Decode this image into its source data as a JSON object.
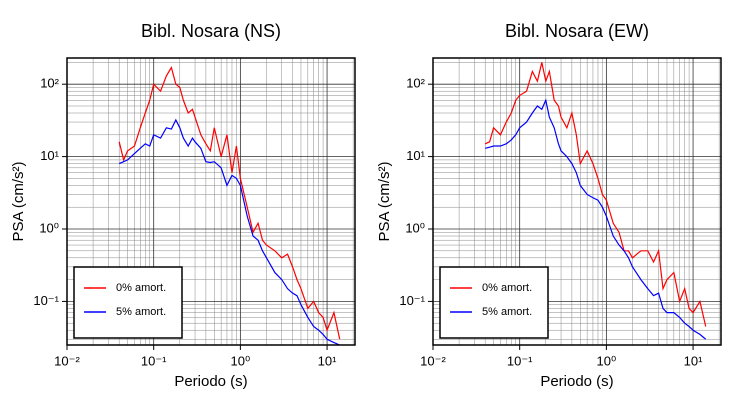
{
  "chart_data": [
    {
      "type": "line",
      "title": "Bibl. Nosara (NS)",
      "xlabel": "Periodo (s)",
      "ylabel": "PSA (cm/s²)",
      "log_x": true,
      "log_y": true,
      "grid": true,
      "legend": "lower left",
      "xlim": [
        0.01,
        21
      ],
      "ylim": [
        0.025,
        230
      ],
      "xticks": [
        {
          "value": 0.01,
          "label": "10⁻²"
        },
        {
          "value": 0.1,
          "label": "10⁻¹"
        },
        {
          "value": 1,
          "label": "10⁰"
        },
        {
          "value": 10,
          "label": "10¹"
        }
      ],
      "yticks": [
        {
          "value": 0.1,
          "label": "10⁻¹"
        },
        {
          "value": 1,
          "label": "10⁰"
        },
        {
          "value": 10,
          "label": "10¹"
        },
        {
          "value": 100,
          "label": "10²"
        }
      ],
      "x": [
        0.04,
        0.045,
        0.05,
        0.06,
        0.07,
        0.08,
        0.09,
        0.1,
        0.12,
        0.14,
        0.16,
        0.18,
        0.2,
        0.22,
        0.25,
        0.28,
        0.3,
        0.35,
        0.4,
        0.45,
        0.5,
        0.6,
        0.7,
        0.8,
        0.9,
        1.0,
        1.2,
        1.4,
        1.6,
        1.8,
        2,
        2.5,
        3,
        3.5,
        4,
        4.5,
        5,
        6,
        7,
        8,
        9,
        10,
        12,
        14
      ],
      "series": [
        {
          "name": "0% amort.",
          "color": "#ff0000",
          "values": [
            16,
            9,
            12,
            14,
            25,
            40,
            60,
            100,
            80,
            130,
            170,
            100,
            90,
            60,
            40,
            45,
            35,
            20,
            15,
            12,
            25,
            10,
            20,
            6,
            14,
            5,
            2,
            0.9,
            1.2,
            0.7,
            0.6,
            0.5,
            0.4,
            0.45,
            0.3,
            0.2,
            0.15,
            0.08,
            0.1,
            0.07,
            0.06,
            0.04,
            0.07,
            0.03
          ]
        },
        {
          "name": "5% amort.",
          "color": "#0000ff",
          "values": [
            8,
            8.5,
            9,
            11,
            13,
            15,
            14,
            20,
            18,
            25,
            24,
            32,
            25,
            18,
            14,
            18,
            16,
            13,
            8.5,
            8.3,
            8.5,
            7,
            4,
            5.5,
            5,
            4,
            1.5,
            0.8,
            0.7,
            0.5,
            0.4,
            0.25,
            0.2,
            0.15,
            0.13,
            0.12,
            0.09,
            0.06,
            0.045,
            0.04,
            0.035,
            0.03,
            0.027,
            0.025
          ]
        }
      ]
    },
    {
      "type": "line",
      "title": "Bibl. Nosara (EW)",
      "xlabel": "Periodo (s)",
      "ylabel": "PSA (cm/s²)",
      "log_x": true,
      "log_y": true,
      "grid": true,
      "legend": "lower left",
      "xlim": [
        0.01,
        21
      ],
      "ylim": [
        0.025,
        230
      ],
      "xticks": [
        {
          "value": 0.01,
          "label": "10⁻²"
        },
        {
          "value": 0.1,
          "label": "10⁻¹"
        },
        {
          "value": 1,
          "label": "10⁰"
        },
        {
          "value": 10,
          "label": "10¹"
        }
      ],
      "yticks": [
        {
          "value": 0.1,
          "label": "10⁻¹"
        },
        {
          "value": 1,
          "label": "10⁰"
        },
        {
          "value": 10,
          "label": "10¹"
        },
        {
          "value": 100,
          "label": "10²"
        }
      ],
      "x": [
        0.04,
        0.045,
        0.05,
        0.06,
        0.07,
        0.08,
        0.09,
        0.1,
        0.12,
        0.14,
        0.16,
        0.18,
        0.2,
        0.22,
        0.25,
        0.28,
        0.3,
        0.35,
        0.4,
        0.45,
        0.5,
        0.6,
        0.7,
        0.8,
        0.9,
        1.0,
        1.2,
        1.4,
        1.6,
        1.8,
        2,
        2.5,
        3,
        3.5,
        4,
        4.5,
        5,
        6,
        7,
        8,
        9,
        10,
        12,
        14
      ],
      "series": [
        {
          "name": "0% amort.",
          "color": "#ff0000",
          "values": [
            15,
            16,
            25,
            20,
            30,
            40,
            60,
            70,
            80,
            150,
            110,
            200,
            110,
            150,
            60,
            50,
            35,
            25,
            40,
            20,
            8,
            12,
            8,
            5,
            3,
            2.5,
            1.2,
            0.9,
            0.5,
            0.5,
            0.4,
            0.5,
            0.5,
            0.35,
            0.5,
            0.15,
            0.2,
            0.25,
            0.1,
            0.15,
            0.08,
            0.07,
            0.1,
            0.045
          ]
        },
        {
          "name": "5% amort.",
          "color": "#0000ff",
          "values": [
            13,
            13.5,
            14,
            14,
            15,
            17,
            20,
            25,
            30,
            40,
            50,
            45,
            60,
            35,
            25,
            15,
            12,
            10,
            8,
            6,
            4,
            3,
            2.7,
            2.5,
            2,
            1.5,
            0.8,
            0.6,
            0.5,
            0.4,
            0.3,
            0.2,
            0.15,
            0.12,
            0.13,
            0.08,
            0.07,
            0.07,
            0.06,
            0.05,
            0.045,
            0.04,
            0.035,
            0.03
          ]
        }
      ]
    }
  ]
}
